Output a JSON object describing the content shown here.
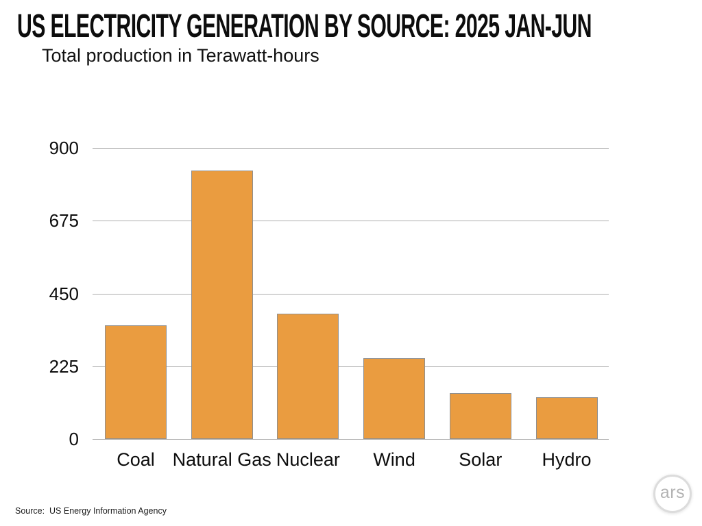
{
  "header": {
    "title": "US ELECTRICITY GENERATION BY SOURCE: 2025 JAN-JUN",
    "subtitle": "Total production in Terawatt-hours"
  },
  "footer": {
    "source_label": "Source:  US Energy Information Agency",
    "logo_text": "ars"
  },
  "colors": {
    "bar_fill": "#EA9C40",
    "bar_border": "#8F8F8F",
    "gridline": "#ADADAD",
    "text": "#0D0D0D",
    "logo_ring": "#DCDCDC",
    "logo_text": "#B3B3B3",
    "background": "#FFFFFF"
  },
  "chart_data": {
    "type": "bar",
    "title": "US ELECTRICITY GENERATION BY SOURCE: 2025 JAN-JUN",
    "subtitle": "Total production in Terawatt-hours",
    "categories": [
      "Coal",
      "Natural Gas",
      "Nuclear",
      "Wind",
      "Solar",
      "Hydro"
    ],
    "values": [
      352,
      830,
      387,
      250,
      141,
      129
    ],
    "unit": "Terawatt-hours",
    "xlabel": "",
    "ylabel": "Total production in Terawatt-hours",
    "ylim": [
      0,
      900
    ],
    "yticks": [
      0,
      225,
      450,
      675,
      900
    ],
    "grid": true,
    "legend": false,
    "source": "US Energy Information Agency"
  }
}
